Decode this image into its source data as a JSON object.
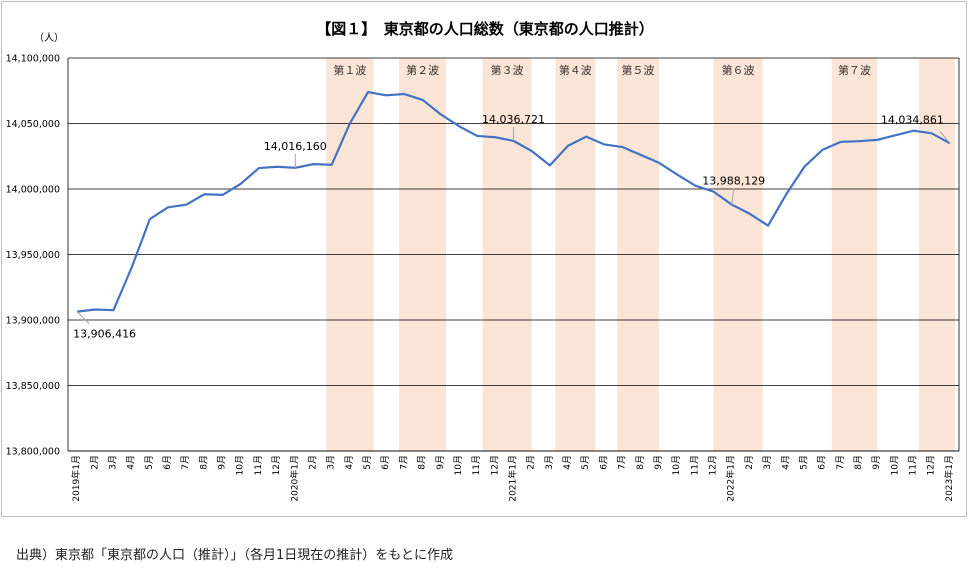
{
  "chart_data": {
    "type": "line",
    "title": "【図１】　東京都の人口総数（東京都の人口推計）",
    "y_unit": "（人）",
    "ylim": [
      13800000,
      14100000
    ],
    "y_ticks": [
      "13,800,000",
      "13,850,000",
      "13,900,000",
      "13,950,000",
      "14,000,000",
      "14,050,000",
      "14,100,000"
    ],
    "x_labels": [
      "2019年1月",
      "2月",
      "3月",
      "4月",
      "5月",
      "6月",
      "7月",
      "8月",
      "9月",
      "10月",
      "11月",
      "12月",
      "2020年1月",
      "2月",
      "3月",
      "4月",
      "5月",
      "6月",
      "7月",
      "8月",
      "9月",
      "10月",
      "11月",
      "12月",
      "2021年1月",
      "2月",
      "3月",
      "4月",
      "5月",
      "6月",
      "7月",
      "8月",
      "9月",
      "10月",
      "11月",
      "12月",
      "2022年1月",
      "2月",
      "3月",
      "4月",
      "5月",
      "6月",
      "7月",
      "8月",
      "9月",
      "10月",
      "11月",
      "12月",
      "2023年1月"
    ],
    "series": [
      {
        "values": [
          13906416,
          13908000,
          13907500,
          13940000,
          13977000,
          13986000,
          13988000,
          13996000,
          13995500,
          14004000,
          14016000,
          14017000,
          14016160,
          14019000,
          14018500,
          14050000,
          14074000,
          14071500,
          14072500,
          14068000,
          14057000,
          14048000,
          14040500,
          14039500,
          14036721,
          14029000,
          14018000,
          14033000,
          14040000,
          14034000,
          14032000,
          14026000,
          14020000,
          14011000,
          14002500,
          13998000,
          13988129,
          13981000,
          13972000,
          13996000,
          14017000,
          14030000,
          14036000,
          14036500,
          14037500,
          14041000,
          14044500,
          14042500,
          14034861
        ]
      }
    ],
    "waves": [
      {
        "label": "第１波",
        "start": 14.2,
        "end": 16.8
      },
      {
        "label": "第２波",
        "start": 18.2,
        "end": 20.8
      },
      {
        "label": "第３波",
        "start": 22.8,
        "end": 25.5
      },
      {
        "label": "第４波",
        "start": 26.8,
        "end": 29.0
      },
      {
        "label": "第５波",
        "start": 30.2,
        "end": 32.5
      },
      {
        "label": "第６波",
        "start": 35.5,
        "end": 38.2
      },
      {
        "label": "第７波",
        "start": 42.0,
        "end": 44.5
      },
      {
        "label": "",
        "start": 46.8,
        "end": 48.8
      }
    ],
    "annotations": [
      {
        "index": 0,
        "text": "13,906,416"
      },
      {
        "index": 12,
        "text": "14,016,160"
      },
      {
        "index": 24,
        "text": "14,036,721"
      },
      {
        "index": 36,
        "text": "13,988,129"
      },
      {
        "index": 48,
        "text": "14,034,861"
      }
    ],
    "colors": {
      "line": "#4472c4",
      "wave": "#fbe5d6",
      "grid": "#000000"
    }
  },
  "source_note": "出典）東京都「東京都の人口（推計）」（各月1日現在の推計）をもとに作成"
}
